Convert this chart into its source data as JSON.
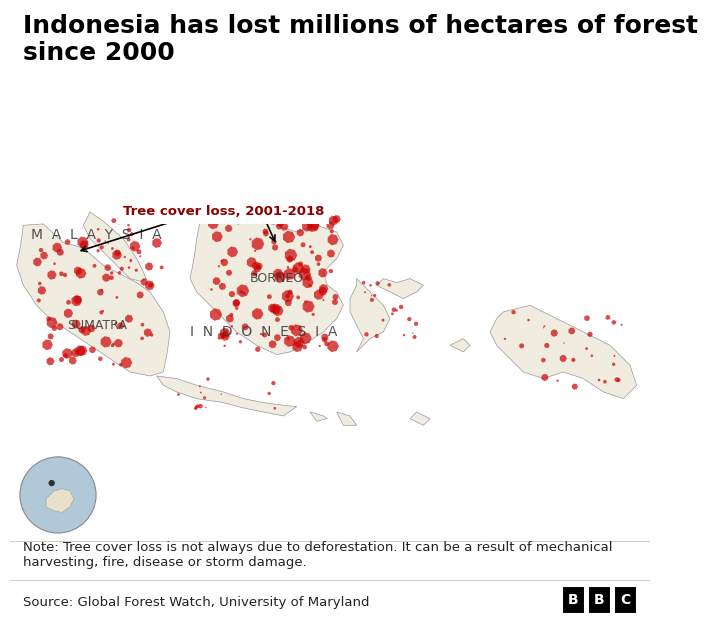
{
  "title": "Indonesia has lost millions of hectares of forest\nsince 2000",
  "title_fontsize": 18,
  "title_fontweight": "bold",
  "title_color": "#000000",
  "map_bg_color": "#aec6cf",
  "land_color": "#f0ece0",
  "forest_loss_color": "#cc0000",
  "forest_loss_alpha": 0.7,
  "label_malaysia": "M  A  L  A  Y  S  I  A",
  "label_indonesia": "I  N  D  O  N  E  S  I  A",
  "label_sumatra": "SUMATRA",
  "label_borneo": "BORNEO",
  "label_malaysia_fontsize": 10,
  "label_indonesia_fontsize": 10,
  "label_sumatra_fontsize": 9,
  "label_borneo_fontsize": 9,
  "annotation_text": "Tree cover loss, 2001-2018",
  "annotation_color": "#8b0000",
  "annotation_bg": "#ffffff",
  "note_text": "Note: Tree cover loss is not always due to deforestation. It can be a result of mechanical\nharvesting, fire, disease or storm damage.",
  "source_text": "Source: Global Forest Watch, University of Maryland",
  "note_fontsize": 9.5,
  "source_fontsize": 9.5,
  "bg_color": "#ffffff"
}
